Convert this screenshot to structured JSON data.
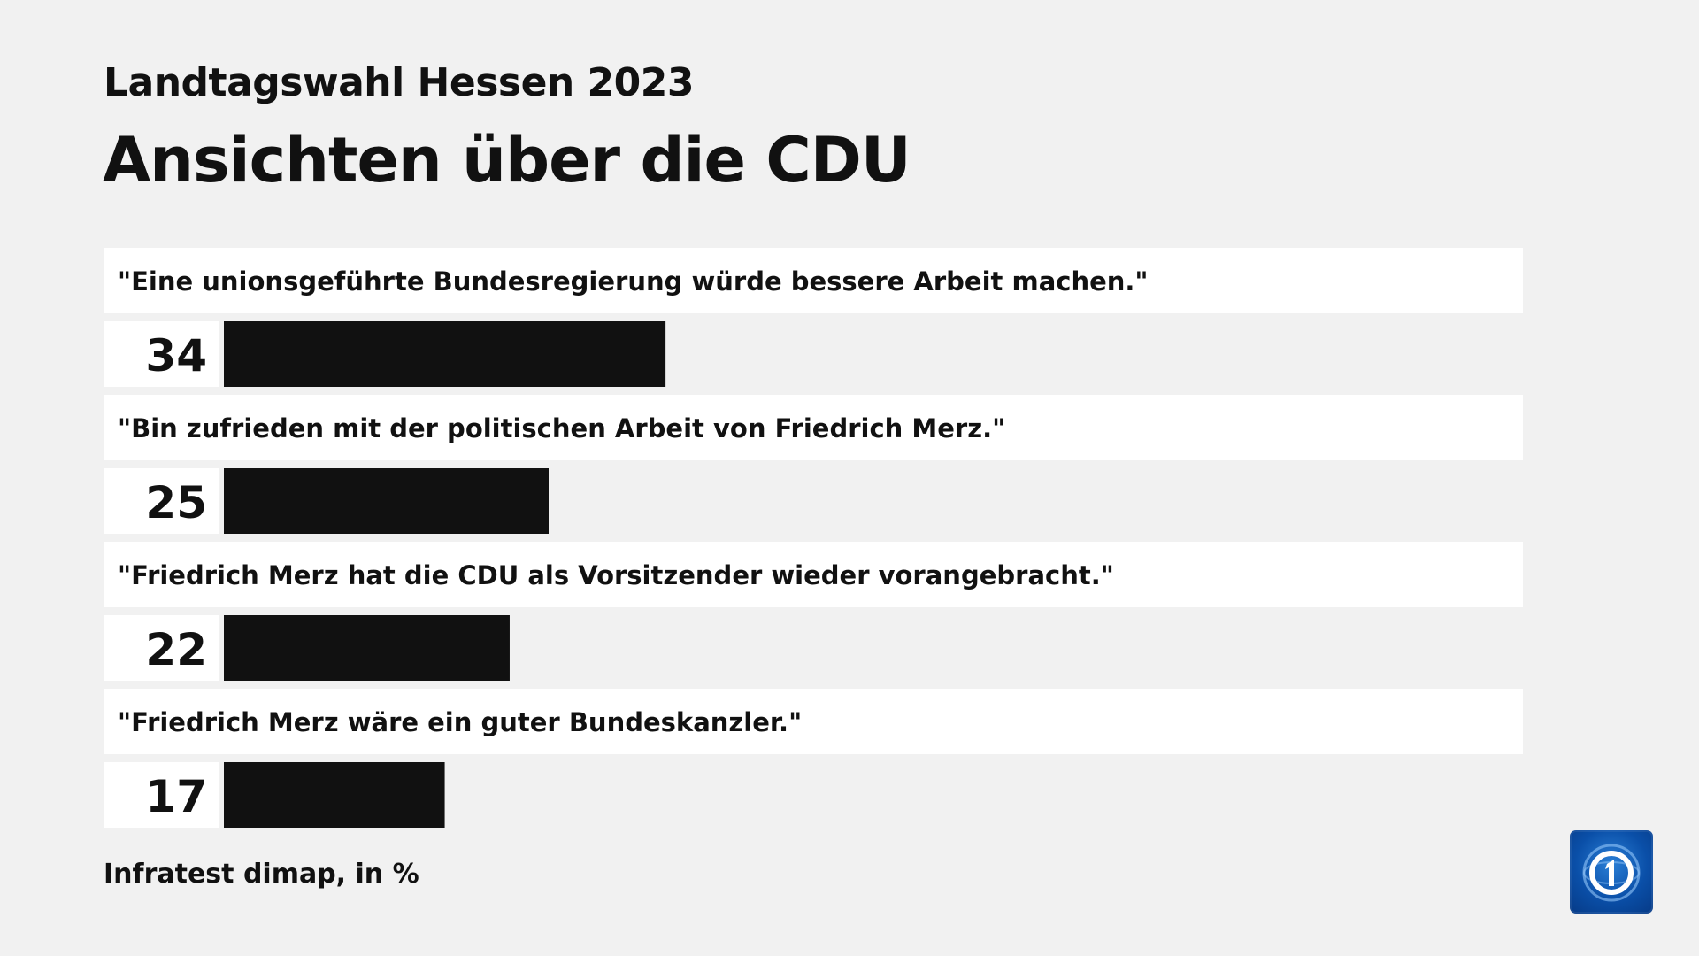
{
  "header": {
    "subtitle": "Landtagswahl Hessen 2023",
    "title": "Ansichten über die CDU"
  },
  "chart_data": {
    "type": "bar",
    "orientation": "horizontal",
    "unit": "%",
    "categories": [
      "\"Eine unionsgeführte Bundesregierung würde bessere Arbeit machen.\"",
      "\"Bin zufrieden mit der politischen Arbeit von Friedrich Merz.\"",
      "\"Friedrich Merz hat die CDU als Vorsitzender wieder vorangebracht.\"",
      "\"Friedrich Merz wäre ein guter Bundeskanzler.\""
    ],
    "values": [
      34,
      25,
      22,
      17
    ],
    "xlim": [
      0,
      100
    ],
    "bar_color": "#111111",
    "grid": false
  },
  "footer": {
    "source": "Infratest dimap, in %"
  },
  "logo": {
    "icon": "das-erste-logo-icon",
    "color": "#0a4fa8"
  }
}
